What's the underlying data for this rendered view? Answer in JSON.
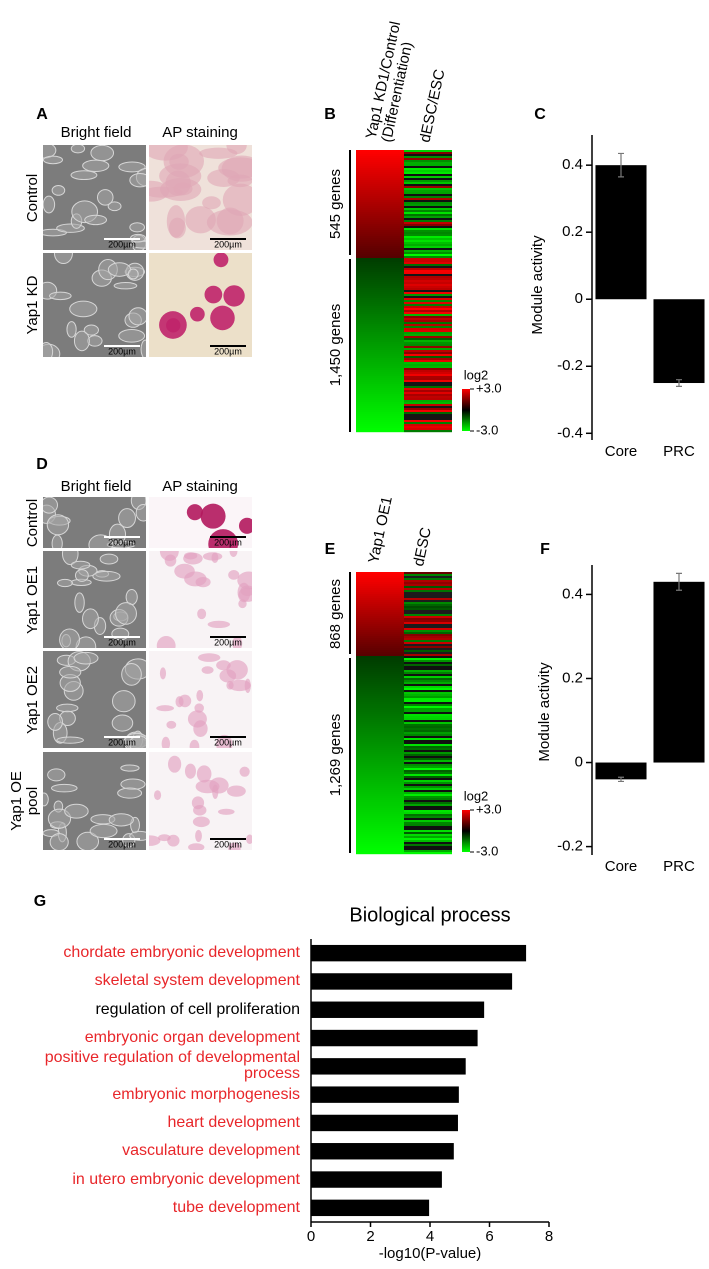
{
  "scale_bar": "200µm",
  "heatmap_legend": {
    "title": "log2",
    "ticks": [
      {
        "value": 3,
        "label": "+3.0"
      },
      {
        "value": -3,
        "label": "-3.0"
      }
    ]
  },
  "panels": {
    "a": {
      "label": "A",
      "columns": [
        "Bright field",
        "AP staining"
      ],
      "rows": [
        "Control",
        "Yap1 KD"
      ]
    },
    "b": {
      "label": "B",
      "columns": [
        "Yap1 KD1/Control (Differentiation)",
        "dESC/ESC"
      ],
      "groups": [
        "545 genes",
        "1,450 genes"
      ]
    },
    "d": {
      "label": "D",
      "columns": [
        "Bright field",
        "AP staining"
      ],
      "rows": [
        "Control",
        "Yap1 OE1",
        "Yap1 OE2",
        "Yap1 OE pool"
      ]
    },
    "e": {
      "label": "E",
      "columns": [
        "Yap1 OE1",
        "dESC"
      ],
      "groups": [
        "868 genes",
        "1,269 genes"
      ]
    }
  },
  "chart_data": [
    {
      "type": "bar",
      "label": "C",
      "ylabel": "Module activity",
      "categories": [
        "Core",
        "PRC"
      ],
      "values": [
        0.4,
        -0.25
      ],
      "errors": [
        0.035,
        0.01
      ],
      "color": "#000000",
      "ylim": [
        -0.42,
        0.49
      ],
      "yticks": [
        -0.4,
        -0.2,
        0,
        0.2,
        0.4
      ]
    },
    {
      "type": "bar",
      "label": "F",
      "ylabel": "Module activity",
      "categories": [
        "Core",
        "PRC"
      ],
      "values": [
        -0.04,
        0.43
      ],
      "errors": [
        0.005,
        0.02
      ],
      "color": "#000000",
      "ylim": [
        -0.22,
        0.47
      ],
      "yticks": [
        -0.2,
        0,
        0.2,
        0.4
      ]
    },
    {
      "type": "barh",
      "label": "G",
      "title": "Biological process",
      "xlabel": "-log10(P-value)",
      "categories": [
        "chordate embryonic development",
        "skeletal system development",
        "regulation of cell proliferation",
        "embryonic organ development",
        "positive regulation of developmental process",
        "embryonic morphogenesis",
        "heart development",
        "vasculature development",
        "in utero embryonic development",
        "tube development"
      ],
      "values": [
        7.23,
        6.76,
        5.82,
        5.6,
        5.2,
        4.97,
        4.94,
        4.8,
        4.4,
        3.97
      ],
      "label_colors": [
        "#e8262a",
        "#e8262a",
        "#000000",
        "#e8262a",
        "#e8262a",
        "#e8262a",
        "#e8262a",
        "#e8262a",
        "#e8262a",
        "#e8262a"
      ],
      "color": "#000000",
      "xlim": [
        0,
        8
      ],
      "xticks": [
        0,
        2,
        4,
        6,
        8
      ]
    }
  ]
}
